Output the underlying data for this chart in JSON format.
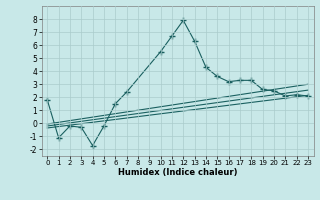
{
  "title": "",
  "xlabel": "Humidex (Indice chaleur)",
  "ylabel": "",
  "background_color": "#c8e8e8",
  "grid_color": "#aacccc",
  "line_color": "#1a6060",
  "xlim": [
    -0.5,
    23.5
  ],
  "ylim": [
    -2.5,
    9.0
  ],
  "xticks": [
    0,
    1,
    2,
    3,
    4,
    5,
    6,
    7,
    8,
    9,
    10,
    11,
    12,
    13,
    14,
    15,
    16,
    17,
    18,
    19,
    20,
    21,
    22,
    23
  ],
  "yticks": [
    -2,
    -1,
    0,
    1,
    2,
    3,
    4,
    5,
    6,
    7,
    8
  ],
  "series1_x": [
    0,
    1,
    2,
    3,
    4,
    5,
    6,
    7,
    10,
    11,
    12,
    13,
    14,
    15,
    16,
    17,
    18,
    19,
    20,
    21,
    22,
    23
  ],
  "series1_y": [
    1.8,
    -1.1,
    -0.2,
    -0.3,
    -1.7,
    -0.2,
    1.5,
    2.4,
    5.5,
    6.7,
    7.9,
    6.3,
    4.3,
    3.6,
    3.2,
    3.3,
    3.3,
    2.6,
    2.5,
    2.1,
    2.2,
    2.1
  ],
  "series2_x": [
    0,
    23
  ],
  "series2_y": [
    -0.05,
    3.0
  ],
  "series3_x": [
    0,
    23
  ],
  "series3_y": [
    -0.2,
    2.55
  ],
  "series4_x": [
    0,
    23
  ],
  "series4_y": [
    -0.35,
    2.15
  ]
}
